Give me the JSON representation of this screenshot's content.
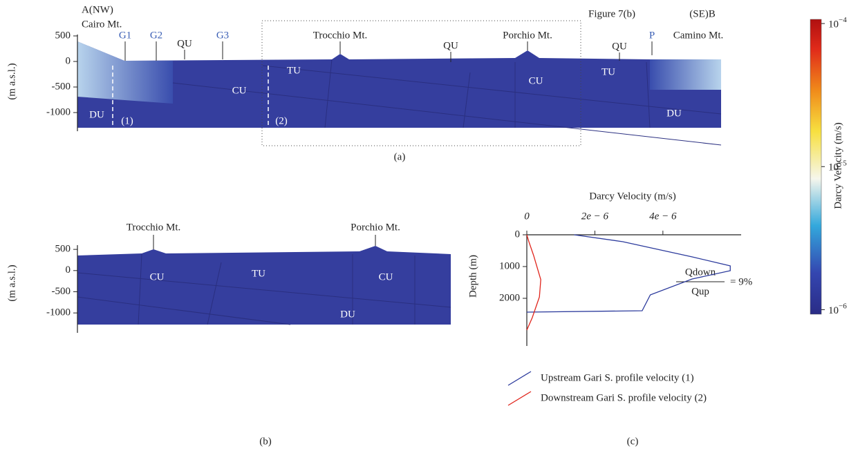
{
  "panel_a": {
    "caption": "(a)",
    "y_label": "(m a.s.l.)",
    "ylim": [
      527,
      -1365
    ],
    "yticks": [
      500,
      0,
      -500,
      -1000
    ],
    "labels": [
      "A(NW)",
      "Cairo Mt.",
      "G1",
      "G2",
      "QU",
      "G3",
      "Trocchio Mt.",
      "QU",
      "Porchio Mt.",
      "QU",
      "P",
      "Camino Mt.",
      "(SE)B",
      "Figure 7(b)",
      "TU",
      "TU",
      "CU",
      "CU",
      "DU",
      "DU",
      "(1)",
      "(2)"
    ]
  },
  "panel_b": {
    "caption": "(b)",
    "y_label": "(m a.s.l.)",
    "ylim": [
      600,
      -1470
    ],
    "yticks": [
      500,
      0,
      -500,
      -1000
    ],
    "labels": [
      "Trocchio Mt.",
      "Porchio Mt.",
      "CU",
      "TU",
      "CU",
      "DU"
    ]
  },
  "colorbar": {
    "label": "Darcy Velocity (m/s)",
    "log": true,
    "range": [
      9.3e-07,
      0.000107
    ],
    "ticks": [
      {
        "value": 0.0001,
        "label": "10",
        "exponent": "−4"
      },
      {
        "value": 1e-05,
        "label": "10",
        "exponent": "−5"
      },
      {
        "value": 1e-06,
        "label": "10",
        "exponent": "−6"
      }
    ]
  },
  "chart_data": {
    "type": "line",
    "caption": "(c)",
    "x_label": "Darcy Velocity (m/s)",
    "y_label": "Depth (m)",
    "xlim": [
      0,
      6.3e-06
    ],
    "ylim": [
      0,
      3500
    ],
    "y_inverted": true,
    "xticks": [
      0,
      {
        "value": 2e-06,
        "label": "2e − 6"
      },
      {
        "value": 4e-06,
        "label": "4e − 6"
      }
    ],
    "yticks": [
      0,
      1000,
      2000
    ],
    "annotation": {
      "numerator": "Qdown",
      "denominator": "Qup",
      "text": "= 9%"
    },
    "series": [
      {
        "name": "Upstream Gari S. profile velocity (1)",
        "color": "#2b3a9c",
        "x": [
          1.39e-06,
          2.82e-06,
          4.86e-06,
          5.98e-06,
          5.98e-06,
          4.86e-06,
          3.63e-06,
          3.39e-06,
          0
        ],
        "values": [
          0,
          217,
          696,
          978,
          1130,
          1391,
          1891,
          2391,
          2435
        ]
      },
      {
        "name": "Downstream Gari S. profile velocity (2)",
        "color": "#e0241b",
        "x": [
          0,
          6e-08,
          2e-07,
          4.1e-07,
          3.7e-07,
          1.6e-07,
          0
        ],
        "values": [
          0,
          217,
          652,
          1413,
          1957,
          2609,
          3000
        ]
      }
    ]
  }
}
